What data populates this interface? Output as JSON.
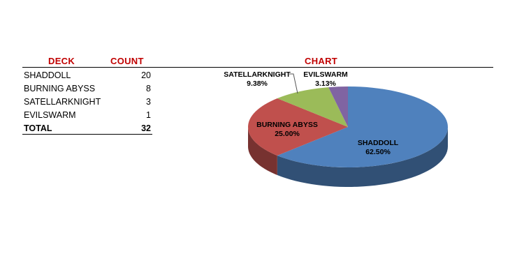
{
  "table": {
    "header_deck": "DECK",
    "header_count": "COUNT",
    "rows": [
      {
        "deck": "SHADDOLL",
        "count": "20"
      },
      {
        "deck": "BURNING ABYSS",
        "count": "8"
      },
      {
        "deck": "SATELLARKNIGHT",
        "count": "3"
      },
      {
        "deck": "EVILSWARM",
        "count": "1"
      }
    ],
    "total_label": "TOTAL",
    "total_count": "32"
  },
  "chart_header": "CHART",
  "chart_data": {
    "type": "pie",
    "title": "",
    "categories": [
      "SHADDOLL",
      "BURNING ABYSS",
      "SATELLARKNIGHT",
      "EVILSWARM"
    ],
    "values": [
      20,
      8,
      3,
      1
    ],
    "percent_labels": [
      "62.50%",
      "25.00%",
      "9.38%",
      "3.13%"
    ],
    "colors": [
      "#4f81bd",
      "#c0504d",
      "#9bbb59",
      "#8064a2"
    ],
    "style": "3d"
  }
}
